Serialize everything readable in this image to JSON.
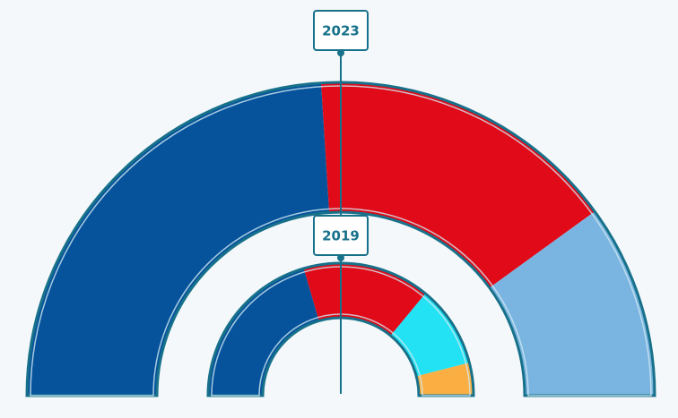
{
  "chart_data": {
    "type": "semi-donut",
    "rings": [
      {
        "label": "2023",
        "values": [
          48,
          32,
          20
        ],
        "colors": [
          "#06539c",
          "#e00a18",
          "#7ab4e0"
        ]
      },
      {
        "label": "2019",
        "values": [
          41,
          31,
          20,
          8
        ],
        "colors": [
          "#06539c",
          "#e00a18",
          "#22e2f4",
          "#fbaf42"
        ]
      }
    ]
  }
}
